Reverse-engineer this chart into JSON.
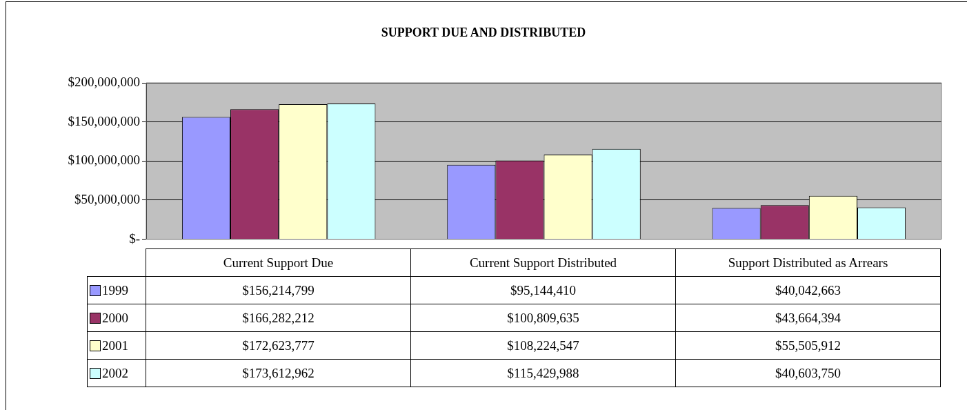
{
  "chart_data": {
    "type": "bar",
    "title": "SUPPORT DUE AND DISTRIBUTED",
    "categories": [
      "Current Support Due",
      "Current Support Distributed",
      "Support Distributed as Arrears"
    ],
    "series": [
      {
        "name": "1999",
        "color": "#9999ff",
        "values": [
          156214799,
          95144410,
          40042663
        ],
        "value_labels": [
          "$156,214,799",
          "$95,144,410",
          "$40,042,663"
        ]
      },
      {
        "name": "2000",
        "color": "#993366",
        "values": [
          166282212,
          100809635,
          43664394
        ],
        "value_labels": [
          "$166,282,212",
          "$100,809,635",
          "$43,664,394"
        ]
      },
      {
        "name": "2001",
        "color": "#ffffcc",
        "values": [
          172623777,
          108224547,
          55505912
        ],
        "value_labels": [
          "$172,623,777",
          "$108,224,547",
          "$55,505,912"
        ]
      },
      {
        "name": "2002",
        "color": "#ccffff",
        "values": [
          173612962,
          115429988,
          40603750
        ],
        "value_labels": [
          "$173,612,962",
          "$115,429,988",
          "$40,603,750"
        ]
      }
    ],
    "ylim": [
      0,
      200000000
    ],
    "yticks": [
      {
        "value": 0,
        "label": "$-"
      },
      {
        "value": 50000000,
        "label": "$50,000,000"
      },
      {
        "value": 100000000,
        "label": "$100,000,000"
      },
      {
        "value": 150000000,
        "label": "$150,000,000"
      },
      {
        "value": 200000000,
        "label": "$200,000,000"
      }
    ],
    "grid": "y",
    "legend": "bottom left"
  }
}
